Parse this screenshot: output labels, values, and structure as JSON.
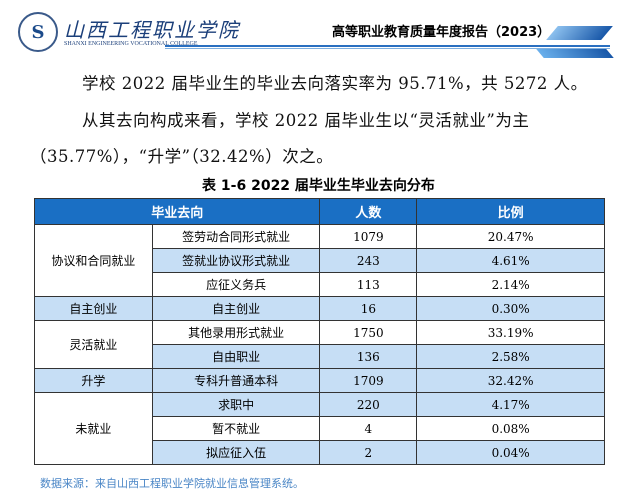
{
  "header": {
    "school_cn": "山西工程职业学院",
    "school_en": "SHANXI ENGINEERING VOCATIONAL COLLEGE",
    "report_title": "高等职业教育质量年度报告（2023）"
  },
  "paragraphs": [
    "学校 2022 届毕业生的毕业去向落实率为 95.71%，共 5272 人。",
    "从其去向构成来看，学校 2022 届毕业生以“灵活就业”为主",
    "（35.77%），“升学”（32.42%）次之。"
  ],
  "table": {
    "caption": "表 1-6   2022 届毕业生毕业去向分布",
    "headers": [
      "毕业去向",
      "人数",
      "比例"
    ],
    "groups": [
      "协议和合同就业",
      "自主创业",
      "灵活就业",
      "升学",
      "未就业"
    ],
    "rows": [
      {
        "item": "签劳动合同形式就业",
        "count": "1079",
        "ratio": "20.47%"
      },
      {
        "item": "签就业协议形式就业",
        "count": "243",
        "ratio": "4.61%"
      },
      {
        "item": "应征义务兵",
        "count": "113",
        "ratio": "2.14%"
      },
      {
        "item": "自主创业",
        "count": "16",
        "ratio": "0.30%"
      },
      {
        "item": "其他录用形式就业",
        "count": "1750",
        "ratio": "33.19%"
      },
      {
        "item": "自由职业",
        "count": "136",
        "ratio": "2.58%"
      },
      {
        "item": "专科升普通本科",
        "count": "1709",
        "ratio": "32.42%"
      },
      {
        "item": "求职中",
        "count": "220",
        "ratio": "4.17%"
      },
      {
        "item": "暂不就业",
        "count": "4",
        "ratio": "0.08%"
      },
      {
        "item": "拟应征入伍",
        "count": "2",
        "ratio": "0.04%"
      }
    ]
  },
  "footnote": "数据来源：来自山西工程职业学院就业信息管理系统。",
  "colors": {
    "header_bg": "#1a6fc4",
    "stripe": "#c6def5",
    "accent": "#1b3f7a"
  }
}
